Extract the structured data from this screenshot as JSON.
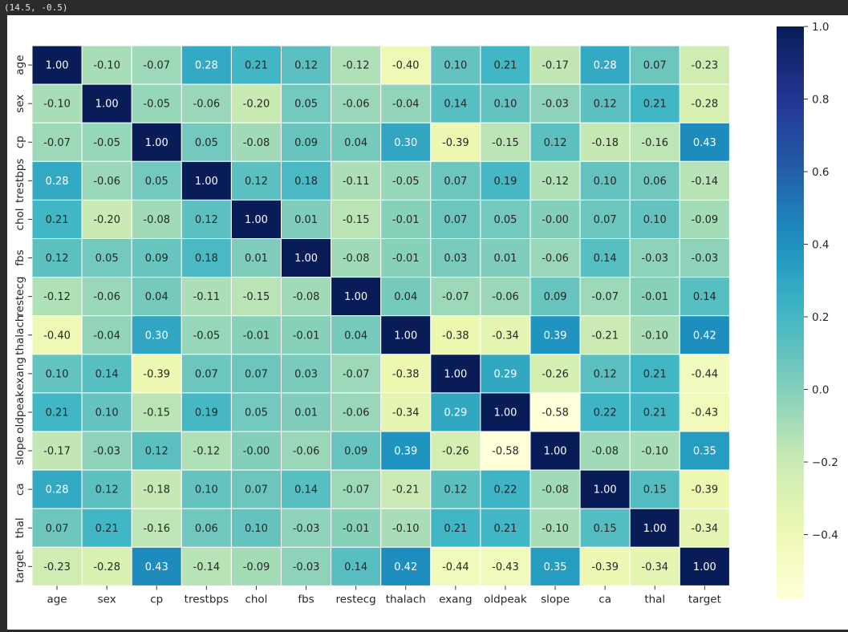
{
  "output": {
    "coordinate_readout": "(14.5, -0.5)"
  },
  "chart_data": {
    "type": "heatmap",
    "title": "",
    "xlabel": "",
    "ylabel": "",
    "colormap": "YlGnBu",
    "colorbar": {
      "vmin": -0.58,
      "vmax": 1.0,
      "ticks": [
        "1.0",
        "0.8",
        "0.6",
        "0.4",
        "0.2",
        "0.0",
        "−0.2",
        "−0.4"
      ],
      "tick_values": [
        1.0,
        0.8,
        0.6,
        0.4,
        0.2,
        0.0,
        -0.2,
        -0.4
      ]
    },
    "labels": [
      "age",
      "sex",
      "cp",
      "trestbps",
      "chol",
      "fbs",
      "restecg",
      "thalach",
      "exang",
      "oldpeak",
      "slope",
      "ca",
      "thal",
      "target"
    ],
    "values": [
      [
        1.0,
        -0.1,
        -0.07,
        0.28,
        0.21,
        0.12,
        -0.12,
        -0.4,
        0.1,
        0.21,
        -0.17,
        0.28,
        0.07,
        -0.23
      ],
      [
        -0.1,
        1.0,
        -0.05,
        -0.06,
        -0.2,
        0.05,
        -0.06,
        -0.04,
        0.14,
        0.1,
        -0.03,
        0.12,
        0.21,
        -0.28
      ],
      [
        -0.07,
        -0.05,
        1.0,
        0.05,
        -0.08,
        0.09,
        0.04,
        0.3,
        -0.39,
        -0.15,
        0.12,
        -0.18,
        -0.16,
        0.43
      ],
      [
        0.28,
        -0.06,
        0.05,
        1.0,
        0.12,
        0.18,
        -0.11,
        -0.05,
        0.07,
        0.19,
        -0.12,
        0.1,
        0.06,
        -0.14
      ],
      [
        0.21,
        -0.2,
        -0.08,
        0.12,
        1.0,
        0.01,
        -0.15,
        -0.01,
        0.07,
        0.05,
        -0.0,
        0.07,
        0.1,
        -0.09
      ],
      [
        0.12,
        0.05,
        0.09,
        0.18,
        0.01,
        1.0,
        -0.08,
        -0.01,
        0.03,
        0.01,
        -0.06,
        0.14,
        -0.03,
        -0.03
      ],
      [
        -0.12,
        -0.06,
        0.04,
        -0.11,
        -0.15,
        -0.08,
        1.0,
        0.04,
        -0.07,
        -0.06,
        0.09,
        -0.07,
        -0.01,
        0.14
      ],
      [
        -0.4,
        -0.04,
        0.3,
        -0.05,
        -0.01,
        -0.01,
        0.04,
        1.0,
        -0.38,
        -0.34,
        0.39,
        -0.21,
        -0.1,
        0.42
      ],
      [
        0.1,
        0.14,
        -0.39,
        0.07,
        0.07,
        0.03,
        -0.07,
        -0.38,
        1.0,
        0.29,
        -0.26,
        0.12,
        0.21,
        -0.44
      ],
      [
        0.21,
        0.1,
        -0.15,
        0.19,
        0.05,
        0.01,
        -0.06,
        -0.34,
        0.29,
        1.0,
        -0.58,
        0.22,
        0.21,
        -0.43
      ],
      [
        -0.17,
        -0.03,
        0.12,
        -0.12,
        -0.0,
        -0.06,
        0.09,
        0.39,
        -0.26,
        -0.58,
        1.0,
        -0.08,
        -0.1,
        0.35
      ],
      [
        0.28,
        0.12,
        -0.18,
        0.1,
        0.07,
        0.14,
        -0.07,
        -0.21,
        0.12,
        0.22,
        -0.08,
        1.0,
        0.15,
        -0.39
      ],
      [
        0.07,
        0.21,
        -0.16,
        0.06,
        0.1,
        -0.03,
        -0.01,
        -0.1,
        0.21,
        0.21,
        -0.1,
        0.15,
        1.0,
        -0.34
      ],
      [
        -0.23,
        -0.28,
        0.43,
        -0.14,
        -0.09,
        -0.03,
        0.14,
        0.42,
        -0.44,
        -0.43,
        0.35,
        -0.39,
        -0.34,
        1.0
      ]
    ]
  }
}
